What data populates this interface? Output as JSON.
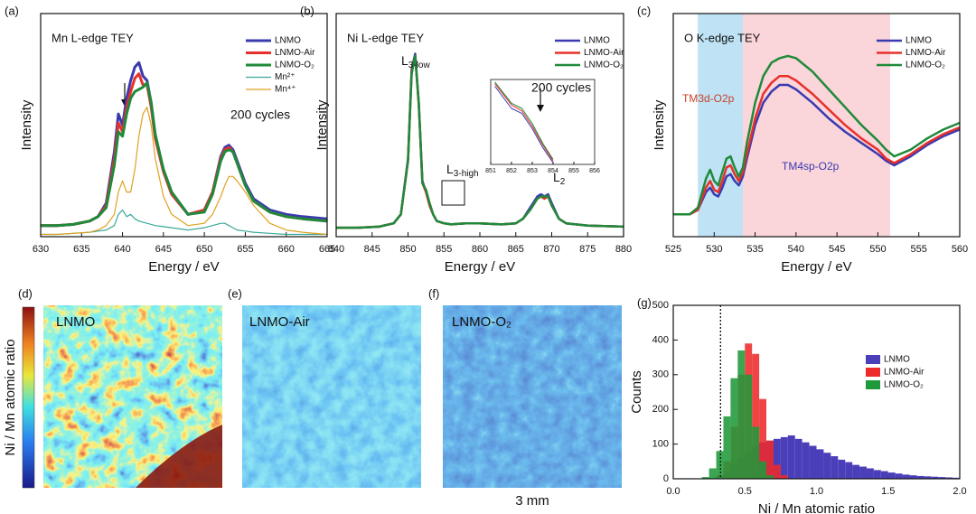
{
  "chart_data": [
    {
      "type": "line",
      "panel": "(a)",
      "title": "Mn L-edge TEY",
      "annotation": "200 cycles",
      "xlabel": "Energy / eV",
      "ylabel": "Intensity",
      "xlim": [
        630,
        665
      ],
      "xticks": [
        630,
        635,
        640,
        645,
        650,
        655,
        660,
        665
      ],
      "ylim": [
        0,
        1
      ],
      "x": [
        630,
        632,
        634,
        636,
        637,
        638,
        639,
        639.5,
        640,
        640.5,
        641,
        641.5,
        642,
        642.5,
        643,
        643.5,
        644,
        645,
        646,
        648,
        650,
        651,
        652,
        652.5,
        653,
        653.5,
        654,
        655,
        656,
        658,
        660,
        662,
        665
      ],
      "series": [
        {
          "name": "LNMO",
          "color": "#3a3ab0",
          "width": 3,
          "values": [
            0.05,
            0.05,
            0.055,
            0.07,
            0.09,
            0.15,
            0.38,
            0.55,
            0.5,
            0.62,
            0.7,
            0.76,
            0.78,
            0.72,
            0.7,
            0.6,
            0.45,
            0.3,
            0.2,
            0.1,
            0.12,
            0.2,
            0.36,
            0.4,
            0.41,
            0.39,
            0.34,
            0.24,
            0.17,
            0.12,
            0.1,
            0.09,
            0.08
          ]
        },
        {
          "name": "LNMO-Air",
          "color": "#e8302a",
          "width": 3,
          "values": [
            0.05,
            0.05,
            0.055,
            0.07,
            0.09,
            0.14,
            0.35,
            0.51,
            0.47,
            0.58,
            0.65,
            0.71,
            0.73,
            0.68,
            0.68,
            0.58,
            0.44,
            0.29,
            0.19,
            0.1,
            0.12,
            0.2,
            0.35,
            0.39,
            0.4,
            0.38,
            0.33,
            0.23,
            0.16,
            0.11,
            0.09,
            0.08,
            0.07
          ]
        },
        {
          "name": "LNMO-O₂",
          "color": "#1f8a3a",
          "width": 3,
          "values": [
            0.05,
            0.05,
            0.055,
            0.07,
            0.09,
            0.13,
            0.32,
            0.47,
            0.45,
            0.55,
            0.62,
            0.65,
            0.66,
            0.67,
            0.69,
            0.6,
            0.46,
            0.3,
            0.2,
            0.1,
            0.11,
            0.19,
            0.34,
            0.38,
            0.39,
            0.38,
            0.33,
            0.23,
            0.16,
            0.11,
            0.09,
            0.08,
            0.07
          ]
        },
        {
          "name": "Mn²⁺",
          "color": "#3aa89a",
          "width": 1.2,
          "values": [
            0.01,
            0.01,
            0.015,
            0.02,
            0.025,
            0.03,
            0.05,
            0.1,
            0.12,
            0.09,
            0.1,
            0.08,
            0.07,
            0.065,
            0.06,
            0.055,
            0.05,
            0.045,
            0.04,
            0.03,
            0.04,
            0.05,
            0.06,
            0.06,
            0.05,
            0.04,
            0.03,
            0.025,
            0.02,
            0.015,
            0.01,
            0.01,
            0.01
          ]
        },
        {
          "name": "Mn⁴⁺",
          "color": "#e0a020",
          "width": 1.2,
          "values": [
            0.01,
            0.01,
            0.015,
            0.02,
            0.03,
            0.05,
            0.1,
            0.2,
            0.25,
            0.2,
            0.2,
            0.3,
            0.45,
            0.55,
            0.58,
            0.5,
            0.35,
            0.18,
            0.1,
            0.05,
            0.06,
            0.1,
            0.18,
            0.23,
            0.27,
            0.27,
            0.25,
            0.2,
            0.14,
            0.06,
            0.03,
            0.02,
            0.01
          ]
        }
      ]
    },
    {
      "type": "line",
      "panel": "(b)",
      "title": "Ni L-edge TEY",
      "annotation": "200 cycles",
      "xlabel": "Energy / eV",
      "ylabel": "Intensity",
      "peaks": [
        {
          "main": "L",
          "sub": "3-low"
        },
        {
          "main": "L",
          "sub": "3-high"
        },
        {
          "main": "L",
          "sub": "2"
        }
      ],
      "xlim": [
        840,
        880
      ],
      "xticks": [
        840,
        845,
        850,
        855,
        860,
        865,
        870,
        875,
        880
      ],
      "ylim": [
        0,
        1
      ],
      "x": [
        840,
        843,
        846,
        848,
        849,
        850,
        850.5,
        851,
        851.5,
        852,
        852.5,
        853,
        853.5,
        854,
        855,
        856,
        858,
        860,
        863,
        865,
        866,
        867,
        868,
        868.5,
        869,
        869.5,
        870,
        871,
        872,
        875,
        880
      ],
      "series": [
        {
          "name": "LNMO",
          "color": "#3a3ab0",
          "width": 2.5,
          "values": [
            0.04,
            0.04,
            0.045,
            0.06,
            0.1,
            0.35,
            0.75,
            0.82,
            0.6,
            0.25,
            0.2,
            0.14,
            0.1,
            0.07,
            0.06,
            0.055,
            0.06,
            0.06,
            0.055,
            0.06,
            0.08,
            0.13,
            0.18,
            0.19,
            0.18,
            0.19,
            0.15,
            0.08,
            0.06,
            0.05,
            0.045
          ]
        },
        {
          "name": "LNMO-Air",
          "color": "#e8302a",
          "width": 2.5,
          "values": [
            0.04,
            0.04,
            0.045,
            0.06,
            0.1,
            0.34,
            0.74,
            0.81,
            0.59,
            0.24,
            0.2,
            0.14,
            0.1,
            0.07,
            0.06,
            0.055,
            0.06,
            0.06,
            0.055,
            0.06,
            0.08,
            0.12,
            0.17,
            0.18,
            0.17,
            0.18,
            0.14,
            0.08,
            0.06,
            0.05,
            0.045
          ]
        },
        {
          "name": "LNMO-O₂",
          "color": "#1f8a3a",
          "width": 2.5,
          "values": [
            0.04,
            0.04,
            0.045,
            0.06,
            0.1,
            0.34,
            0.73,
            0.81,
            0.6,
            0.24,
            0.21,
            0.15,
            0.1,
            0.07,
            0.06,
            0.055,
            0.06,
            0.06,
            0.055,
            0.06,
            0.08,
            0.12,
            0.17,
            0.18,
            0.18,
            0.18,
            0.14,
            0.08,
            0.06,
            0.05,
            0.045
          ]
        }
      ]
    },
    {
      "type": "line",
      "xlim": [
        851,
        856
      ],
      "xticks": [
        851,
        852,
        853,
        854,
        855,
        856
      ],
      "ylim": [
        0,
        1
      ],
      "x": [
        851.2,
        852,
        852.5,
        853,
        853.5,
        854
      ],
      "series": [
        {
          "color": "#3a3ab0",
          "width": 1,
          "values": [
            0.92,
            0.66,
            0.6,
            0.42,
            0.2,
            0.02
          ]
        },
        {
          "color": "#e8302a",
          "width": 1,
          "values": [
            0.95,
            0.7,
            0.63,
            0.45,
            0.23,
            0.04
          ]
        },
        {
          "color": "#1f8a3a",
          "width": 1,
          "values": [
            0.97,
            0.72,
            0.66,
            0.48,
            0.25,
            0.06
          ]
        }
      ]
    },
    {
      "type": "line",
      "panel": "(c)",
      "title": "O K-edge TEY",
      "xlabel": "Energy / eV",
      "ylabel": "Intensity",
      "xlim": [
        525,
        560
      ],
      "xticks": [
        525,
        530,
        535,
        540,
        545,
        550,
        555,
        560
      ],
      "ylim": [
        0,
        1
      ],
      "regions": [
        {
          "start": 528,
          "end": 533.5,
          "color": "#bfe3f5",
          "label": "TM3d-O2p",
          "label_color": "#c8402a"
        },
        {
          "start": 533.5,
          "end": 551.5,
          "color": "#fad5da",
          "label": "TM4sp-O2p",
          "label_color": "#3a3ab0"
        }
      ],
      "x": [
        525,
        527,
        528,
        529,
        529.5,
        530,
        530.5,
        531,
        531.5,
        532,
        532.5,
        533,
        533.5,
        534,
        535,
        536,
        537,
        538,
        539,
        540,
        542,
        544,
        546,
        548,
        550,
        551,
        552,
        554,
        556,
        558,
        560
      ],
      "series": [
        {
          "name": "LNMO",
          "color": "#3a3ab0",
          "width": 2.5,
          "values": [
            0.1,
            0.1,
            0.12,
            0.2,
            0.22,
            0.19,
            0.18,
            0.22,
            0.27,
            0.28,
            0.25,
            0.23,
            0.27,
            0.35,
            0.5,
            0.6,
            0.65,
            0.68,
            0.68,
            0.66,
            0.6,
            0.53,
            0.47,
            0.42,
            0.37,
            0.34,
            0.32,
            0.36,
            0.41,
            0.45,
            0.48
          ]
        },
        {
          "name": "LNMO-Air",
          "color": "#e8302a",
          "width": 2.5,
          "values": [
            0.1,
            0.1,
            0.12,
            0.22,
            0.25,
            0.21,
            0.2,
            0.25,
            0.31,
            0.32,
            0.28,
            0.25,
            0.29,
            0.37,
            0.53,
            0.64,
            0.69,
            0.72,
            0.72,
            0.7,
            0.64,
            0.57,
            0.5,
            0.44,
            0.39,
            0.35,
            0.33,
            0.37,
            0.42,
            0.46,
            0.49
          ]
        },
        {
          "name": "LNMO-O₂",
          "color": "#1f8a3a",
          "width": 2.5,
          "values": [
            0.1,
            0.1,
            0.13,
            0.26,
            0.3,
            0.25,
            0.23,
            0.29,
            0.35,
            0.36,
            0.31,
            0.27,
            0.31,
            0.42,
            0.6,
            0.72,
            0.78,
            0.8,
            0.81,
            0.8,
            0.74,
            0.66,
            0.58,
            0.5,
            0.43,
            0.39,
            0.36,
            0.39,
            0.44,
            0.48,
            0.51
          ]
        }
      ]
    },
    {
      "type": "histogram",
      "panel": "(g)",
      "xlabel": "Ni / Mn atomic ratio",
      "ylabel": "Counts",
      "xlim": [
        0,
        2
      ],
      "xticks": [
        {
          "value": 0,
          "label": "0.0"
        },
        0.5,
        {
          "value": 1,
          "label": "1.0"
        },
        1.5,
        {
          "value": 2,
          "label": "2.0"
        }
      ],
      "ylim": [
        0,
        500
      ],
      "yticks": [
        0,
        100,
        200,
        300,
        400,
        500
      ],
      "reference_line": 0.33,
      "bins": [
        0,
        0.05,
        0.1,
        0.15,
        0.2,
        0.25,
        0.3,
        0.35,
        0.4,
        0.45,
        0.5,
        0.55,
        0.6,
        0.65,
        0.7,
        0.75,
        0.8,
        0.85,
        0.9,
        0.95,
        1.0,
        1.05,
        1.1,
        1.15,
        1.2,
        1.25,
        1.3,
        1.35,
        1.4,
        1.45,
        1.5,
        1.55,
        1.6,
        1.65,
        1.7,
        1.75,
        1.8,
        1.85,
        1.9,
        1.95,
        2.0
      ],
      "series": [
        {
          "name": "LNMO",
          "color": "#4a3fb8",
          "values": [
            0,
            0,
            0,
            0,
            0,
            0,
            5,
            20,
            40,
            60,
            80,
            95,
            105,
            110,
            115,
            120,
            125,
            115,
            105,
            95,
            85,
            75,
            65,
            55,
            48,
            40,
            35,
            30,
            25,
            22,
            18,
            15,
            12,
            10,
            8,
            7,
            6,
            5,
            4,
            3
          ]
        },
        {
          "name": "LNMO-Air",
          "color": "#ee2a2a",
          "values": [
            0,
            0,
            0,
            0,
            0,
            0,
            10,
            50,
            150,
            300,
            390,
            360,
            230,
            110,
            40,
            10,
            0,
            0,
            0,
            0,
            0,
            0,
            0,
            0,
            0,
            0,
            0,
            0,
            0,
            0,
            0,
            0,
            0,
            0,
            0,
            0,
            0,
            0,
            0,
            0
          ]
        },
        {
          "name": "LNMO-O₂",
          "color": "#1f9a3a",
          "values": [
            0,
            0,
            0,
            0,
            5,
            30,
            80,
            180,
            290,
            370,
            300,
            150,
            50,
            10,
            0,
            0,
            0,
            0,
            0,
            0,
            0,
            0,
            0,
            0,
            0,
            0,
            0,
            0,
            0,
            0,
            0,
            0,
            0,
            0,
            0,
            0,
            0,
            0,
            0,
            0
          ]
        }
      ]
    }
  ],
  "maps": {
    "colorbar_label": "Ni / Mn atomic ratio",
    "scale_bar": "3 mm",
    "panels": [
      {
        "panel": "(d)",
        "label": "LNMO"
      },
      {
        "panel": "(e)",
        "label": "LNMO-Air"
      },
      {
        "panel": "(f)",
        "label": "LNMO-O₂"
      }
    ]
  }
}
